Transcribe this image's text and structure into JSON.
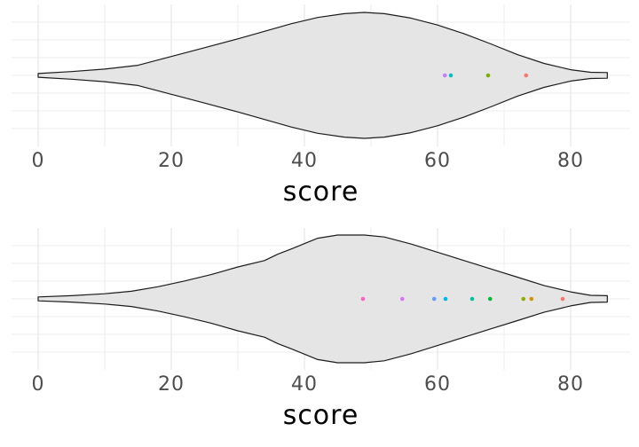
{
  "figure": {
    "background": "#ffffff",
    "grid_color": "#ececec",
    "grid_major_color": "#e6e6e6"
  },
  "chart_data": [
    {
      "type": "violin",
      "orientation": "horizontal",
      "title": "",
      "xlabel": "score",
      "ylabel": "",
      "x_ticks": [
        0,
        20,
        40,
        60,
        80
      ],
      "x_minor_ticks": [
        10,
        30,
        50,
        70
      ],
      "x_range": [
        -4,
        89
      ],
      "grid": "on",
      "legend": "none",
      "violin": {
        "min": 0,
        "max": 85.5,
        "peak": 49,
        "fill": "#e5e5e5",
        "stroke": "#1c1c1c"
      },
      "density": [
        [
          0,
          0.03
        ],
        [
          5,
          0.06
        ],
        [
          10,
          0.1
        ],
        [
          15,
          0.16
        ],
        [
          20,
          0.3
        ],
        [
          25,
          0.44
        ],
        [
          30,
          0.58
        ],
        [
          34,
          0.7
        ],
        [
          38,
          0.82
        ],
        [
          42,
          0.92
        ],
        [
          46,
          0.98
        ],
        [
          49,
          1.0
        ],
        [
          52,
          0.98
        ],
        [
          56,
          0.91
        ],
        [
          60,
          0.8
        ],
        [
          64,
          0.66
        ],
        [
          68,
          0.5
        ],
        [
          72,
          0.33
        ],
        [
          76,
          0.19
        ],
        [
          80,
          0.09
        ],
        [
          83,
          0.05
        ],
        [
          85.5,
          0.045
        ]
      ],
      "points": [
        {
          "value": 61.1,
          "color": "#C77CFF"
        },
        {
          "value": 62.0,
          "color": "#00BFC4"
        },
        {
          "value": 67.6,
          "color": "#7CAE00"
        },
        {
          "value": 73.3,
          "color": "#F8766D"
        }
      ],
      "style": {
        "tick_label_color": "#4d4d4d",
        "title_color": "#000000"
      }
    },
    {
      "type": "violin",
      "orientation": "horizontal",
      "title": "",
      "xlabel": "score",
      "ylabel": "",
      "x_ticks": [
        0,
        20,
        40,
        60,
        80
      ],
      "x_minor_ticks": [
        10,
        30,
        50,
        70
      ],
      "x_range": [
        -4,
        89
      ],
      "grid": "on",
      "legend": "none",
      "violin": {
        "min": 0,
        "max": 85.5,
        "peak": 47,
        "fill": "#e5e5e5",
        "stroke": "#1c1c1c"
      },
      "density": [
        [
          0,
          0.03
        ],
        [
          5,
          0.05
        ],
        [
          10,
          0.08
        ],
        [
          14,
          0.12
        ],
        [
          18,
          0.19
        ],
        [
          22,
          0.28
        ],
        [
          26,
          0.38
        ],
        [
          30,
          0.5
        ],
        [
          34,
          0.6
        ],
        [
          36,
          0.7
        ],
        [
          38,
          0.78
        ],
        [
          42,
          0.95
        ],
        [
          45,
          1.0
        ],
        [
          49,
          1.0
        ],
        [
          52,
          0.97
        ],
        [
          56,
          0.86
        ],
        [
          60,
          0.73
        ],
        [
          64,
          0.6
        ],
        [
          68,
          0.47
        ],
        [
          72,
          0.34
        ],
        [
          76,
          0.21
        ],
        [
          80,
          0.11
        ],
        [
          83,
          0.055
        ],
        [
          85.5,
          0.05
        ]
      ],
      "points": [
        {
          "value": 48.8,
          "color": "#FF61C3"
        },
        {
          "value": 54.7,
          "color": "#DB72FB"
        },
        {
          "value": 59.5,
          "color": "#619CFF"
        },
        {
          "value": 61.2,
          "color": "#00B9E3"
        },
        {
          "value": 65.2,
          "color": "#00C19F"
        },
        {
          "value": 67.9,
          "color": "#00BA38"
        },
        {
          "value": 72.9,
          "color": "#93AA00"
        },
        {
          "value": 74.1,
          "color": "#D39200"
        },
        {
          "value": 78.8,
          "color": "#F8766D"
        }
      ],
      "style": {
        "tick_label_color": "#4d4d4d",
        "title_color": "#000000"
      }
    }
  ]
}
